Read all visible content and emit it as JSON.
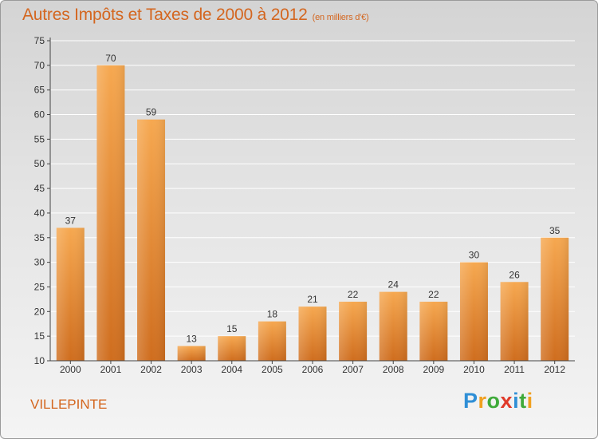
{
  "title": "Autres Impôts et Taxes de 2000 à 2012",
  "unit": "(en milliers d'€)",
  "place": "VILLEPINTE",
  "logo": {
    "letters": [
      {
        "ch": "P",
        "color": "#2f8fd6"
      },
      {
        "ch": "r",
        "color": "#f0a020"
      },
      {
        "ch": "o",
        "color": "#3faa3a"
      },
      {
        "ch": "x",
        "color": "#e03a2a"
      },
      {
        "ch": "i",
        "color": "#2f8fd6"
      },
      {
        "ch": "t",
        "color": "#3faa3a"
      },
      {
        "ch": "i",
        "color": "#f0a020"
      }
    ]
  },
  "colors": {
    "bar_top": "#f6a850",
    "bar_bottom": "#cf6d1e",
    "axis": "#444444",
    "grid": "#ffffff",
    "text": "#333333",
    "accent": "#d4661f"
  },
  "chart_data": {
    "type": "bar",
    "title": "Autres Impôts et Taxes de 2000 à 2012",
    "xlabel": "",
    "ylabel": "",
    "categories": [
      "2000",
      "2001",
      "2002",
      "2003",
      "2004",
      "2005",
      "2006",
      "2007",
      "2008",
      "2009",
      "2010",
      "2011",
      "2012"
    ],
    "values": [
      37,
      70,
      59,
      13,
      15,
      18,
      21,
      22,
      24,
      22,
      30,
      26,
      35
    ],
    "ylim": [
      10,
      75
    ],
    "yticks": [
      10,
      15,
      20,
      25,
      30,
      35,
      40,
      45,
      50,
      55,
      60,
      65,
      70,
      75
    ],
    "grid": true,
    "data_labels": true
  }
}
